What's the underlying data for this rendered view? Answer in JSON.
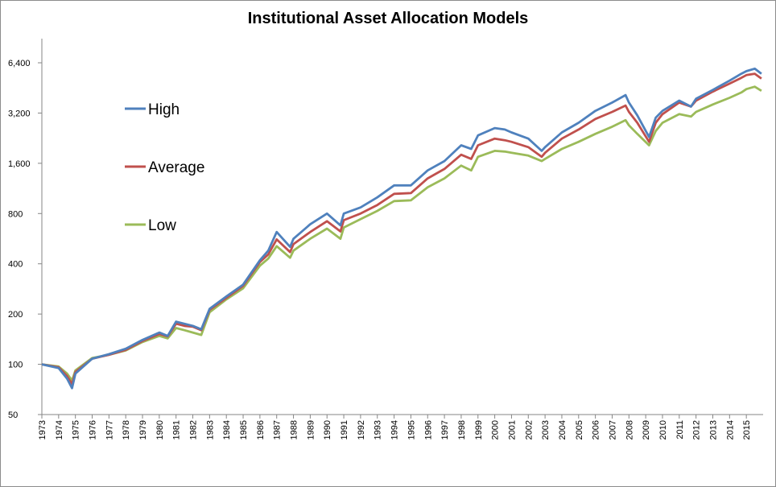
{
  "chart_data": {
    "type": "line",
    "title": "Institutional Asset Allocation Models",
    "xlabel": "",
    "ylabel": "",
    "y_scale": "log2",
    "ylim": [
      50,
      8000
    ],
    "yticks": [
      50,
      100,
      200,
      400,
      800,
      1600,
      3200,
      6400
    ],
    "ytick_labels": [
      "50",
      "100",
      "200",
      "400",
      "800",
      "1,600",
      "3,200",
      "6,400"
    ],
    "xlim": [
      1973.0,
      2016.0
    ],
    "xticks": [
      "1973",
      "1974",
      "1975",
      "1976",
      "1977",
      "1978",
      "1979",
      "1980",
      "1981",
      "1982",
      "1983",
      "1984",
      "1985",
      "1986",
      "1987",
      "1988",
      "1989",
      "1990",
      "1991",
      "1992",
      "1993",
      "1994",
      "1995",
      "1996",
      "1997",
      "1998",
      "1999",
      "2000",
      "2001",
      "2002",
      "2003",
      "2004",
      "2005",
      "2006",
      "2007",
      "2008",
      "2009",
      "2010",
      "2011",
      "2012",
      "2013",
      "2014",
      "2015"
    ],
    "grid": false,
    "legend_position": "left",
    "x": [
      1973,
      1974,
      1974.5,
      1974.8,
      1975,
      1976,
      1977,
      1978,
      1979,
      1980,
      1980.5,
      1981,
      1981.5,
      1982,
      1982.5,
      1983,
      1984,
      1985,
      1986,
      1986.5,
      1987,
      1987.8,
      1988,
      1989,
      1990,
      1990.8,
      1991,
      1992,
      1993,
      1994,
      1995,
      1996,
      1997,
      1998,
      1998.6,
      1999,
      2000,
      2000.6,
      2001,
      2002,
      2002.8,
      2003,
      2004,
      2005,
      2006,
      2007,
      2007.8,
      2008,
      2008.5,
      2009.2,
      2009.6,
      2010,
      2011,
      2011.7,
      2012,
      2013,
      2014,
      2014.7,
      2015,
      2015.5,
      2015.9
    ],
    "series": [
      {
        "name": "High",
        "color": "#4f81bd",
        "values": [
          100,
          95,
          82,
          72,
          88,
          108,
          115,
          124,
          140,
          155,
          148,
          180,
          175,
          170,
          162,
          215,
          255,
          300,
          420,
          480,
          620,
          505,
          565,
          690,
          800,
          680,
          800,
          870,
          1000,
          1180,
          1180,
          1450,
          1650,
          2050,
          1950,
          2350,
          2600,
          2550,
          2450,
          2250,
          1900,
          2000,
          2450,
          2800,
          3300,
          3700,
          4100,
          3700,
          3100,
          2300,
          3000,
          3300,
          3800,
          3500,
          3900,
          4400,
          5000,
          5500,
          5700,
          5900,
          5500
        ]
      },
      {
        "name": "Average",
        "color": "#c0504d",
        "values": [
          100,
          96,
          85,
          76,
          90,
          108,
          114,
          122,
          138,
          152,
          147,
          175,
          170,
          168,
          160,
          212,
          250,
          295,
          410,
          455,
          560,
          470,
          525,
          620,
          720,
          625,
          730,
          800,
          900,
          1050,
          1060,
          1300,
          1480,
          1800,
          1700,
          2050,
          2250,
          2200,
          2150,
          2000,
          1750,
          1850,
          2250,
          2550,
          2950,
          3250,
          3550,
          3250,
          2800,
          2150,
          2800,
          3150,
          3700,
          3500,
          3800,
          4300,
          4800,
          5200,
          5400,
          5500,
          5150
        ]
      },
      {
        "name": "Low",
        "color": "#9bbb59",
        "values": [
          100,
          97,
          88,
          80,
          92,
          109,
          114,
          121,
          136,
          148,
          143,
          165,
          160,
          155,
          150,
          205,
          245,
          285,
          390,
          430,
          510,
          435,
          480,
          565,
          650,
          565,
          660,
          740,
          830,
          950,
          960,
          1150,
          1300,
          1550,
          1450,
          1750,
          1900,
          1880,
          1850,
          1780,
          1650,
          1700,
          1950,
          2150,
          2400,
          2650,
          2900,
          2700,
          2400,
          2050,
          2500,
          2800,
          3150,
          3050,
          3250,
          3600,
          3950,
          4250,
          4450,
          4600,
          4350
        ]
      }
    ]
  }
}
